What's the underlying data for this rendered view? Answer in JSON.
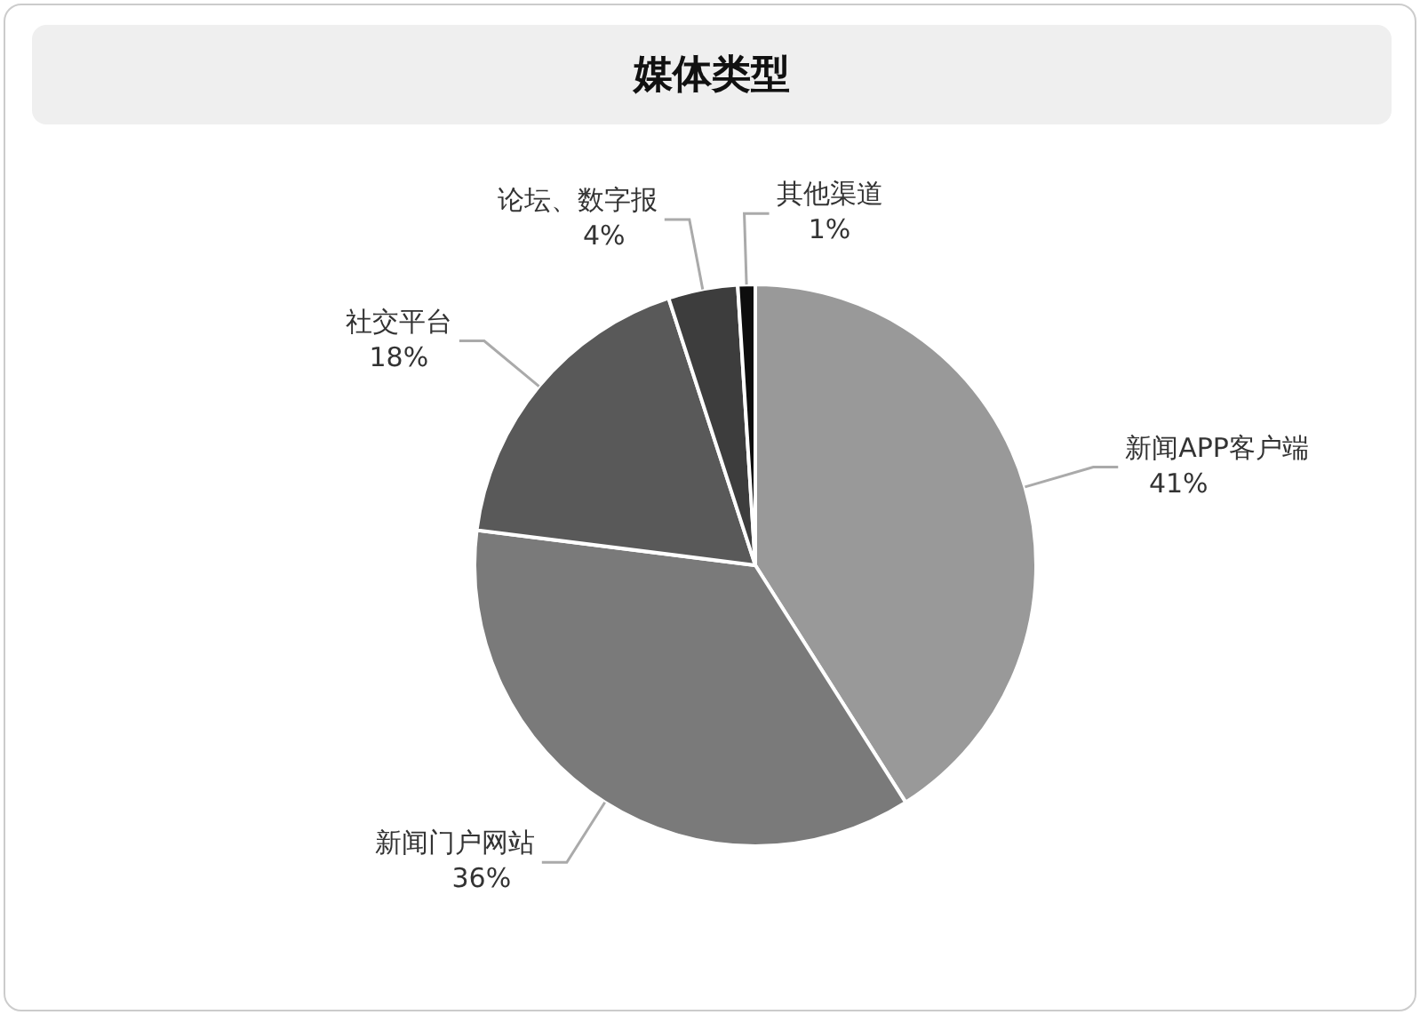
{
  "chart_data": {
    "type": "pie",
    "title": "媒体类型",
    "categories": [
      "新闻APP客户端",
      "新闻门户网站",
      "社交平台",
      "论坛、数字报",
      "其他渠道"
    ],
    "values": [
      41,
      36,
      18,
      4,
      1
    ],
    "value_labels": [
      "41%",
      "36%",
      "18%",
      "4%",
      "1%"
    ],
    "colors": [
      "#999999",
      "#7a7a7a",
      "#595959",
      "#3d3d3d",
      "#0d0d0d"
    ]
  }
}
